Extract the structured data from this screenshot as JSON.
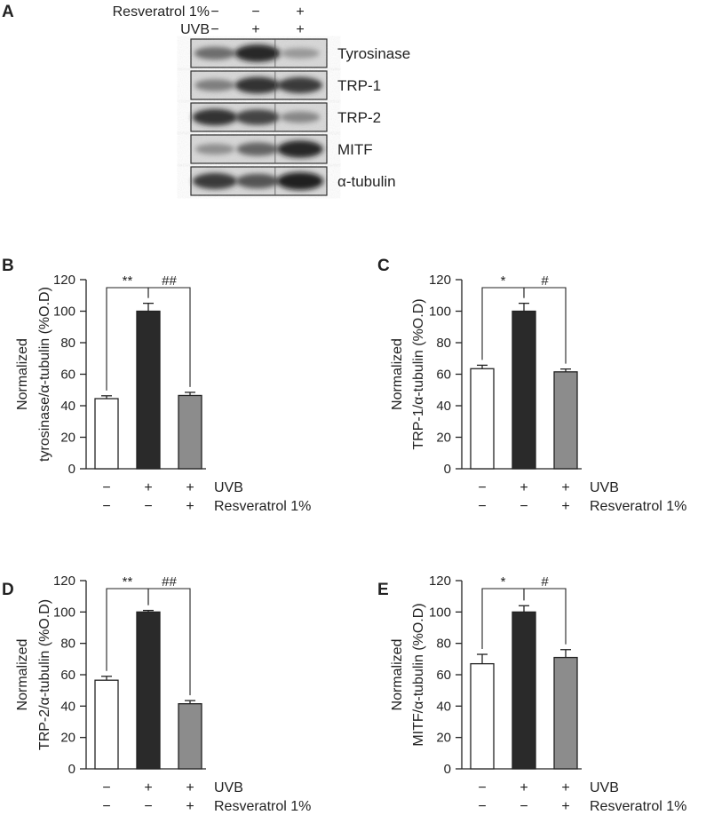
{
  "panels": {
    "A": {
      "letter": "A",
      "row_labels": [
        "Resveratrol 1%",
        "UVB"
      ],
      "lanes": [
        {
          "resveratrol": "−",
          "uvb": "−"
        },
        {
          "resveratrol": "−",
          "uvb": "+"
        },
        {
          "resveratrol": "+",
          "uvb": "+"
        }
      ],
      "blots": [
        {
          "name": "Tyrosinase",
          "intensity": [
            0.55,
            0.95,
            0.3
          ]
        },
        {
          "name": "TRP-1",
          "intensity": [
            0.45,
            0.9,
            0.85
          ]
        },
        {
          "name": "TRP-2",
          "intensity": [
            0.9,
            0.8,
            0.4
          ]
        },
        {
          "name": "MITF",
          "intensity": [
            0.35,
            0.6,
            0.95
          ]
        },
        {
          "name": "α-tubulin",
          "intensity": [
            0.85,
            0.7,
            1.0
          ]
        }
      ]
    }
  },
  "chart_data": [
    {
      "panel": "B",
      "type": "bar",
      "ylabel_line1": "Normalized",
      "ylabel_line2": "tyrosinase/α-tubulin (%O.D)",
      "ylim": [
        0,
        120
      ],
      "yticks": [
        0,
        20,
        40,
        60,
        80,
        100,
        120
      ],
      "values": [
        44.5,
        100,
        46.5
      ],
      "errors": [
        1.8,
        5,
        2
      ],
      "bar_colors": [
        "#ffffff",
        "#2a2a2a",
        "#8c8c8c"
      ],
      "significance": [
        "**",
        "##"
      ],
      "conditions": [
        {
          "label": "UVB",
          "signs": [
            "−",
            "+",
            "+"
          ]
        },
        {
          "label": "Resveratrol 1%",
          "signs": [
            "−",
            "−",
            "+"
          ]
        }
      ]
    },
    {
      "panel": "C",
      "type": "bar",
      "ylabel_line1": "Normalized",
      "ylabel_line2": "TRP-1/α-tubulin (%O.D)",
      "ylim": [
        0,
        120
      ],
      "yticks": [
        0,
        20,
        40,
        60,
        80,
        100,
        120
      ],
      "values": [
        63.5,
        100,
        61.5
      ],
      "errors": [
        2.2,
        5,
        1.8
      ],
      "bar_colors": [
        "#ffffff",
        "#2a2a2a",
        "#8c8c8c"
      ],
      "significance": [
        "*",
        "#"
      ],
      "conditions": [
        {
          "label": "UVB",
          "signs": [
            "−",
            "+",
            "+"
          ]
        },
        {
          "label": "Resveratrol 1%",
          "signs": [
            "−",
            "−",
            "+"
          ]
        }
      ]
    },
    {
      "panel": "D",
      "type": "bar",
      "ylabel_line1": "Normalized",
      "ylabel_line2": "TRP-2/α-tubulin (%O.D)",
      "ylim": [
        0,
        120
      ],
      "yticks": [
        0,
        20,
        40,
        60,
        80,
        100,
        120
      ],
      "values": [
        56.5,
        100,
        41.5
      ],
      "errors": [
        2.5,
        1,
        2
      ],
      "bar_colors": [
        "#ffffff",
        "#2a2a2a",
        "#8c8c8c"
      ],
      "significance": [
        "**",
        "##"
      ],
      "conditions": [
        {
          "label": "UVB",
          "signs": [
            "−",
            "+",
            "+"
          ]
        },
        {
          "label": "Resveratrol 1%",
          "signs": [
            "−",
            "−",
            "+"
          ]
        }
      ]
    },
    {
      "panel": "E",
      "type": "bar",
      "ylabel_line1": "Normalized",
      "ylabel_line2": "MITF/α-tubulin (%O.D)",
      "ylim": [
        0,
        120
      ],
      "yticks": [
        0,
        20,
        40,
        60,
        80,
        100,
        120
      ],
      "values": [
        67,
        100,
        71
      ],
      "errors": [
        6,
        4,
        5
      ],
      "bar_colors": [
        "#ffffff",
        "#2a2a2a",
        "#8c8c8c"
      ],
      "significance": [
        "*",
        "#"
      ],
      "conditions": [
        {
          "label": "UVB",
          "signs": [
            "−",
            "+",
            "+"
          ]
        },
        {
          "label": "Resveratrol 1%",
          "signs": [
            "−",
            "−",
            "+"
          ]
        }
      ]
    }
  ]
}
